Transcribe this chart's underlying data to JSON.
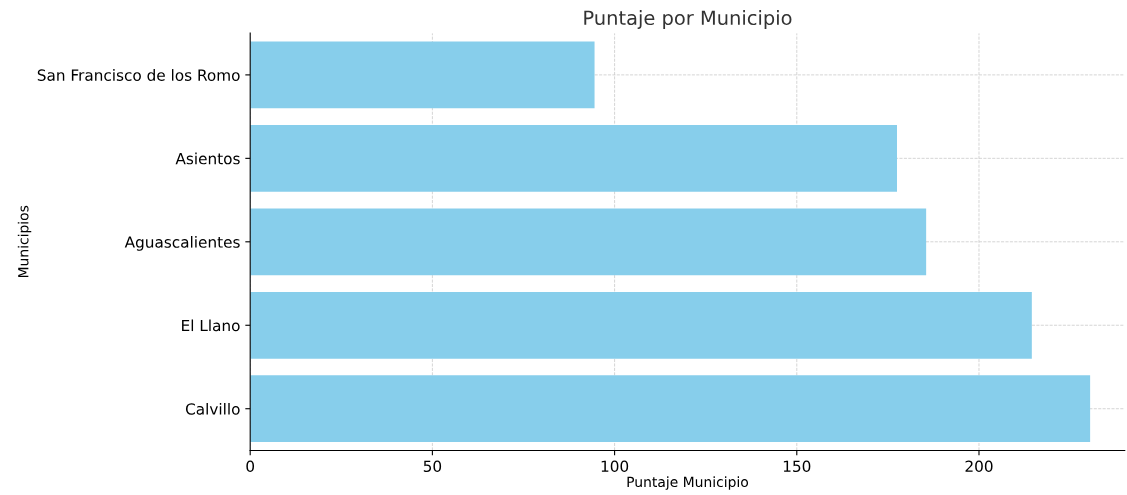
{
  "chart_data": {
    "type": "bar",
    "orientation": "horizontal",
    "title": "Puntaje por Municipio",
    "xlabel": "Puntaje Municipio",
    "ylabel": "Municipios",
    "categories": [
      "San Francisco de los Romo",
      "Asientos",
      "Aguascalientes",
      "El Llano",
      "Calvillo"
    ],
    "values": [
      94.5,
      177.5,
      185.5,
      214.5,
      230.5
    ],
    "color": "#87ceeb",
    "xlim": [
      0,
      240
    ],
    "xticks": [
      0,
      50,
      100,
      150,
      200
    ],
    "grid": true
  }
}
